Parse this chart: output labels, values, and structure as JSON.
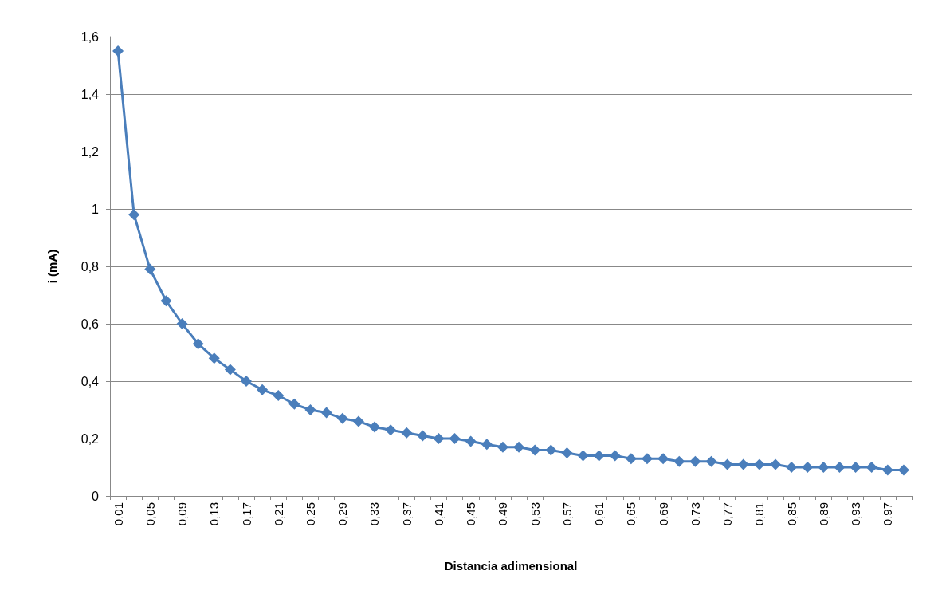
{
  "chart_data": {
    "type": "line",
    "xlabel": "Distancia adimensional",
    "ylabel": "i (mA)",
    "categories": [
      "0,01",
      null,
      "0,05",
      null,
      "0,09",
      null,
      "0,13",
      null,
      "0,17",
      null,
      "0,21",
      null,
      "0,25",
      null,
      "0,29",
      null,
      "0,33",
      null,
      "0,37",
      null,
      "0,41",
      null,
      "0,45",
      null,
      "0,49",
      null,
      "0,53",
      null,
      "0,57",
      null,
      "0,61",
      null,
      "0,65",
      null,
      "0,69",
      null,
      "0,73",
      null,
      "0,77",
      null,
      "0,81",
      null,
      "0,85",
      null,
      "0,89",
      null,
      "0,93",
      null,
      "0,97",
      null
    ],
    "series": [
      {
        "color": "#4a7ebb",
        "values": [
          1.55,
          0.98,
          0.79,
          0.68,
          0.6,
          0.53,
          0.48,
          0.44,
          0.4,
          0.37,
          0.35,
          0.32,
          0.3,
          0.29,
          0.27,
          0.26,
          0.24,
          0.23,
          0.22,
          0.21,
          0.2,
          0.2,
          0.19,
          0.18,
          0.17,
          0.17,
          0.16,
          0.16,
          0.15,
          0.14,
          0.14,
          0.14,
          0.13,
          0.13,
          0.13,
          0.12,
          0.12,
          0.12,
          0.11,
          0.11,
          0.11,
          0.11,
          0.1,
          0.1,
          0.1,
          0.1,
          0.1,
          0.1,
          0.09,
          0.09
        ]
      }
    ],
    "ylim": [
      0,
      1.6
    ],
    "yticks": [
      0,
      {
        "value": 0.2,
        "label": "0,2"
      },
      {
        "value": 0.4,
        "label": "0,4"
      },
      {
        "value": 0.6,
        "label": "0,6"
      },
      {
        "value": 0.8,
        "label": "0,8"
      },
      1,
      {
        "value": 1.2,
        "label": "1,2"
      },
      {
        "value": 1.4,
        "label": "1,4"
      },
      {
        "value": 1.6,
        "label": "1,6"
      }
    ],
    "grid": "y",
    "marker": "diamond",
    "line_style": "solid"
  }
}
